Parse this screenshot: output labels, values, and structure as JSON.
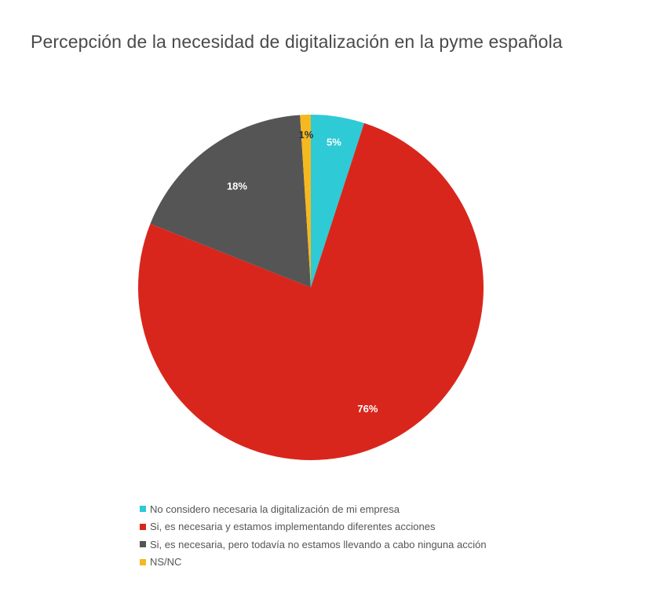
{
  "chart_data": {
    "type": "pie",
    "title": "Percepción de la necesidad de digitalización en la pyme española",
    "slices": [
      {
        "label": "No considero necesaria la digitalización de mi empresa",
        "value": 5,
        "display": "5%",
        "color": "#2ecad6",
        "label_color": "#ffffff"
      },
      {
        "label": "Si, es necesaria y estamos implementando diferentes acciones",
        "value": 76,
        "display": "76%",
        "color": "#d9261c",
        "label_color": "#ffffff"
      },
      {
        "label": "Si, es necesaria, pero todavía no estamos llevando a cabo ninguna acción",
        "value": 18,
        "display": "18%",
        "color": "#555555",
        "label_color": "#ffffff"
      },
      {
        "label": "NS/NC",
        "value": 1,
        "display": "1%",
        "color": "#f5b820",
        "label_color": "#333333"
      }
    ],
    "legend_position": "bottom"
  }
}
